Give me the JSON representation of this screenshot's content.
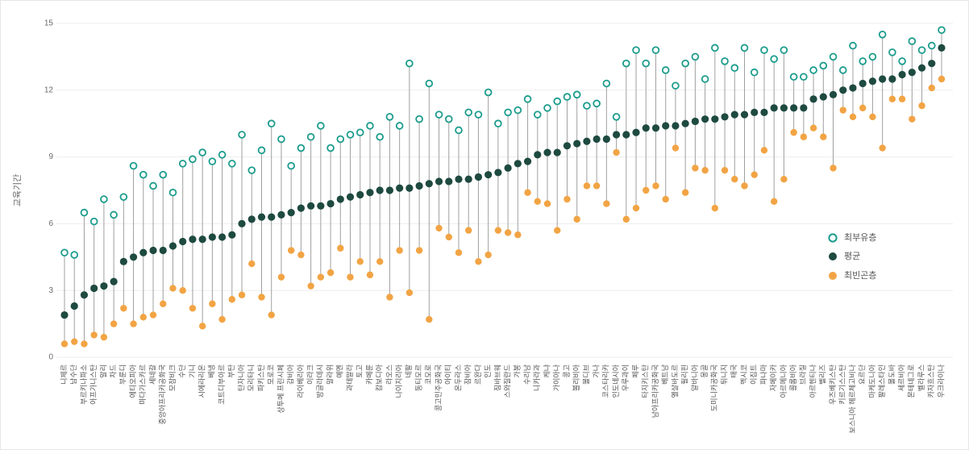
{
  "chart_data": {
    "type": "scatter",
    "xlabel": "",
    "ylabel": "교육기간",
    "ylim": [
      0,
      15
    ],
    "yticks": [
      0,
      3,
      6,
      9,
      12,
      15
    ],
    "grid": true,
    "legend": "right",
    "connector_color": "#a0a0a0",
    "categories": [
      "니제르",
      "남수단",
      "부르키나파소",
      "아프가니스탄",
      "말리",
      "차드",
      "부룬디",
      "에티오피아",
      "마다가스카르",
      "세네갈",
      "중앙아프리카공화국",
      "모잠비크",
      "수단",
      "기니",
      "시에라리온",
      "베냉",
      "코트디부아르",
      "부탄",
      "탄자니아",
      "모리타니",
      "파키스탄",
      "모로코",
      "상투메 프린시페",
      "감비아",
      "라이베리아",
      "이라크",
      "방글라데시",
      "말라위",
      "예멘",
      "과테말라",
      "토고",
      "카메룬",
      "캄보디아",
      "라오스",
      "나이지리아",
      "네팔",
      "동티모르",
      "코모로",
      "콩고민주공화국",
      "아이티",
      "온두라스",
      "잠비아",
      "르완다",
      "인도",
      "짐바브웨",
      "스와질란드",
      "가봉",
      "수리남",
      "니카라과",
      "케냐",
      "가이아나",
      "콩고",
      "볼리비아",
      "몰디브",
      "가나",
      "코스타리카",
      "인도네시아",
      "우루과이",
      "페루",
      "타지키스탄",
      "남아프리카공화국",
      "베트남",
      "엘살바도르",
      "필리핀",
      "알바니아",
      "몽골",
      "도미니카공화국",
      "튀니지",
      "태국",
      "멕시코",
      "이집트",
      "파나마",
      "자메이카",
      "아르메니아",
      "콜롬비아",
      "브라질",
      "아르헨티나",
      "벨리즈",
      "우즈베키스탄",
      "키르기스스탄",
      "보스니아 헤르체고비나",
      "요르단",
      "마케도니아",
      "팔레스타인",
      "몰도바",
      "세르비아",
      "몬테네그로",
      "벨라루스",
      "카자흐스탄",
      "우크라이나"
    ],
    "series": [
      {
        "name": "최부유층",
        "color": "#1c9c8c",
        "marker": "open-circle",
        "values": [
          4.7,
          4.6,
          6.5,
          6.1,
          7.1,
          6.4,
          7.2,
          8.6,
          8.2,
          7.7,
          8.2,
          7.4,
          8.7,
          8.9,
          9.2,
          8.8,
          9.1,
          8.7,
          10.0,
          8.4,
          9.3,
          10.5,
          9.8,
          8.6,
          9.4,
          9.9,
          10.4,
          9.4,
          9.8,
          10.0,
          10.1,
          10.4,
          9.9,
          10.8,
          10.4,
          13.2,
          10.7,
          12.3,
          10.9,
          10.7,
          10.2,
          11.0,
          10.9,
          11.9,
          10.5,
          11.0,
          11.1,
          11.6,
          10.9,
          11.2,
          11.5,
          11.7,
          11.8,
          11.3,
          11.4,
          12.3,
          10.8,
          13.2,
          13.8,
          13.2,
          13.8,
          12.9,
          12.2,
          13.2,
          13.5,
          12.5,
          13.9,
          13.3,
          13.0,
          13.9,
          12.8,
          13.8,
          13.4,
          13.8,
          12.6,
          12.6,
          12.9,
          13.1,
          13.5,
          12.9,
          14.0,
          13.3,
          13.5,
          14.5,
          13.7,
          13.3,
          14.2,
          13.8,
          14.0,
          14.7
        ]
      },
      {
        "name": "평균",
        "color": "#1e4a40",
        "marker": "filled-circle",
        "values": [
          1.9,
          2.3,
          2.8,
          3.1,
          3.2,
          3.4,
          4.3,
          4.5,
          4.7,
          4.8,
          4.8,
          5.0,
          5.2,
          5.3,
          5.3,
          5.4,
          5.4,
          5.5,
          6.0,
          6.2,
          6.3,
          6.3,
          6.4,
          6.5,
          6.7,
          6.8,
          6.8,
          6.9,
          7.1,
          7.2,
          7.3,
          7.4,
          7.5,
          7.5,
          7.6,
          7.6,
          7.7,
          7.8,
          7.9,
          7.9,
          8.0,
          8.0,
          8.1,
          8.2,
          8.3,
          8.5,
          8.7,
          8.8,
          9.1,
          9.2,
          9.2,
          9.5,
          9.6,
          9.7,
          9.8,
          9.8,
          10.0,
          10.0,
          10.1,
          10.3,
          10.3,
          10.4,
          10.4,
          10.5,
          10.6,
          10.7,
          10.7,
          10.8,
          10.9,
          10.9,
          11.0,
          11.0,
          11.2,
          11.2,
          11.2,
          11.2,
          11.6,
          11.7,
          11.8,
          12.0,
          12.1,
          12.3,
          12.4,
          12.5,
          12.5,
          12.7,
          12.8,
          13.0,
          13.2,
          13.9
        ]
      },
      {
        "name": "최빈곤층",
        "color": "#f2a444",
        "marker": "filled-circle",
        "values": [
          0.6,
          0.7,
          0.6,
          1.0,
          0.9,
          1.5,
          2.2,
          1.5,
          1.8,
          1.9,
          2.4,
          3.1,
          3.0,
          2.2,
          1.4,
          2.4,
          1.7,
          2.6,
          2.8,
          4.2,
          2.7,
          1.9,
          3.6,
          4.8,
          4.6,
          3.2,
          3.6,
          3.8,
          4.9,
          3.6,
          4.3,
          3.7,
          4.3,
          2.7,
          4.8,
          2.9,
          4.8,
          1.7,
          5.8,
          5.4,
          4.7,
          5.7,
          4.3,
          4.6,
          5.7,
          5.6,
          5.5,
          7.4,
          7.0,
          6.9,
          5.7,
          7.1,
          6.2,
          7.7,
          7.7,
          6.9,
          9.2,
          6.2,
          6.7,
          7.5,
          7.7,
          7.1,
          9.4,
          7.4,
          8.5,
          8.4,
          6.7,
          8.4,
          8.0,
          7.7,
          8.2,
          9.3,
          7.0,
          8.0,
          10.1,
          9.9,
          10.3,
          9.9,
          8.5,
          11.1,
          10.8,
          11.2,
          10.8,
          9.4,
          11.6,
          11.6,
          10.7,
          11.3,
          12.1,
          12.5
        ]
      }
    ]
  }
}
